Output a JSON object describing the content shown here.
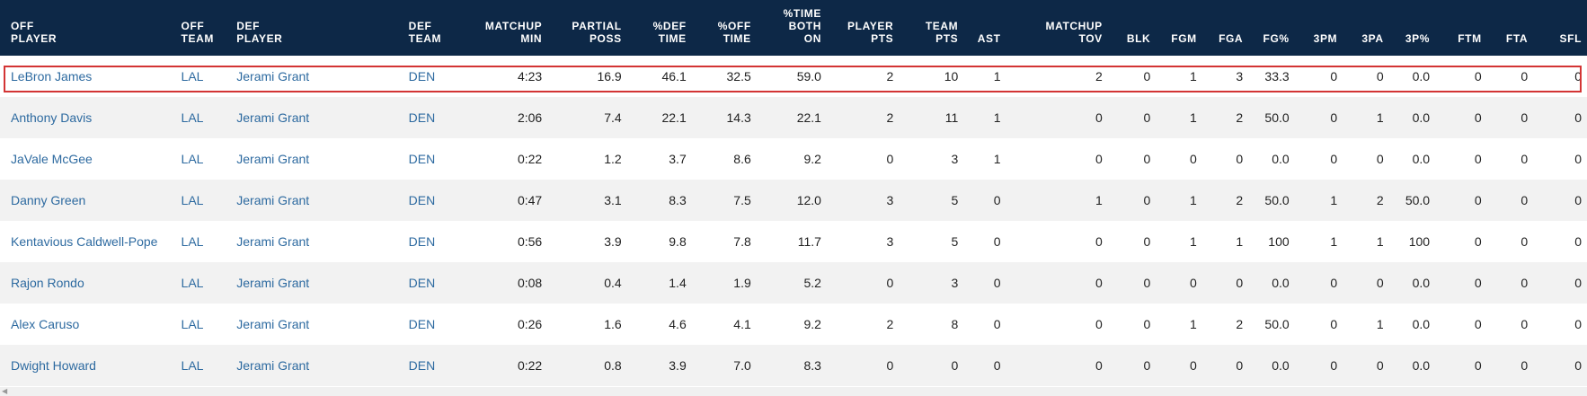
{
  "headers": [
    "OFF\nPLAYER",
    "OFF\nTEAM",
    "DEF\nPLAYER",
    "DEF\nTEAM",
    "MATCHUP\nMIN",
    "PARTIAL\nPOSS",
    "%DEF\nTIME",
    "%OFF\nTIME",
    "%TIME\nBOTH\nON",
    "PLAYER\nPTS",
    "TEAM\nPTS",
    "AST",
    "MATCHUP\nTOV",
    "BLK",
    "FGM",
    "FGA",
    "FG%",
    "3PM",
    "3PA",
    "3P%",
    "FTM",
    "FTA",
    "SFL"
  ],
  "rows": [
    [
      "LeBron James",
      "LAL",
      "Jerami Grant",
      "DEN",
      "4:23",
      "16.9",
      "46.1",
      "32.5",
      "59.0",
      "2",
      "10",
      "1",
      "2",
      "0",
      "1",
      "3",
      "33.3",
      "0",
      "0",
      "0.0",
      "0",
      "0",
      "0"
    ],
    [
      "Anthony Davis",
      "LAL",
      "Jerami Grant",
      "DEN",
      "2:06",
      "7.4",
      "22.1",
      "14.3",
      "22.1",
      "2",
      "11",
      "1",
      "0",
      "0",
      "1",
      "2",
      "50.0",
      "0",
      "1",
      "0.0",
      "0",
      "0",
      "0"
    ],
    [
      "JaVale McGee",
      "LAL",
      "Jerami Grant",
      "DEN",
      "0:22",
      "1.2",
      "3.7",
      "8.6",
      "9.2",
      "0",
      "3",
      "1",
      "0",
      "0",
      "0",
      "0",
      "0.0",
      "0",
      "0",
      "0.0",
      "0",
      "0",
      "0"
    ],
    [
      "Danny Green",
      "LAL",
      "Jerami Grant",
      "DEN",
      "0:47",
      "3.1",
      "8.3",
      "7.5",
      "12.0",
      "3",
      "5",
      "0",
      "1",
      "0",
      "1",
      "2",
      "50.0",
      "1",
      "2",
      "50.0",
      "0",
      "0",
      "0"
    ],
    [
      "Kentavious Caldwell-Pope",
      "LAL",
      "Jerami Grant",
      "DEN",
      "0:56",
      "3.9",
      "9.8",
      "7.8",
      "11.7",
      "3",
      "5",
      "0",
      "0",
      "0",
      "1",
      "1",
      "100",
      "1",
      "1",
      "100",
      "0",
      "0",
      "0"
    ],
    [
      "Rajon Rondo",
      "LAL",
      "Jerami Grant",
      "DEN",
      "0:08",
      "0.4",
      "1.4",
      "1.9",
      "5.2",
      "0",
      "3",
      "0",
      "0",
      "0",
      "0",
      "0",
      "0.0",
      "0",
      "0",
      "0.0",
      "0",
      "0",
      "0"
    ],
    [
      "Alex Caruso",
      "LAL",
      "Jerami Grant",
      "DEN",
      "0:26",
      "1.6",
      "4.6",
      "4.1",
      "9.2",
      "2",
      "8",
      "0",
      "0",
      "0",
      "1",
      "2",
      "50.0",
      "0",
      "1",
      "0.0",
      "0",
      "0",
      "0"
    ],
    [
      "Dwight Howard",
      "LAL",
      "Jerami Grant",
      "DEN",
      "0:22",
      "0.8",
      "3.9",
      "7.0",
      "8.3",
      "0",
      "0",
      "0",
      "0",
      "0",
      "0",
      "0",
      "0.0",
      "0",
      "0",
      "0.0",
      "0",
      "0",
      "0"
    ]
  ],
  "highlighted_row": 0,
  "colors": {
    "header_bg": "#0d2847",
    "link": "#2d6aa0",
    "highlight": "#d33434"
  }
}
